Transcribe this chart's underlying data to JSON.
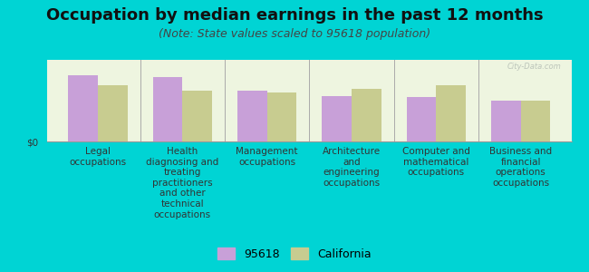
{
  "title": "Occupation by median earnings in the past 12 months",
  "subtitle": "(Note: State values scaled to 95618 population)",
  "categories": [
    "Legal\noccupations",
    "Health\ndiagnosing and\ntreating\npractitioners\nand other\ntechnical\noccupations",
    "Management\noccupations",
    "Architecture\nand\nengineering\noccupations",
    "Computer and\nmathematical\noccupations",
    "Business and\nfinancial\noperations\noccupations"
  ],
  "values_95618": [
    0.85,
    0.83,
    0.65,
    0.58,
    0.57,
    0.52
  ],
  "values_california": [
    0.72,
    0.65,
    0.63,
    0.68,
    0.72,
    0.53
  ],
  "color_95618": "#c8a0d8",
  "color_california": "#c8cc90",
  "background_color": "#00d4d4",
  "plot_bg": "#eef5e0",
  "ylabel": "$0",
  "legend_95618": "95618",
  "legend_california": "California",
  "bar_width": 0.35,
  "title_fontsize": 13,
  "subtitle_fontsize": 9,
  "tick_fontsize": 7.5,
  "legend_fontsize": 9,
  "watermark": "City-Data.com"
}
